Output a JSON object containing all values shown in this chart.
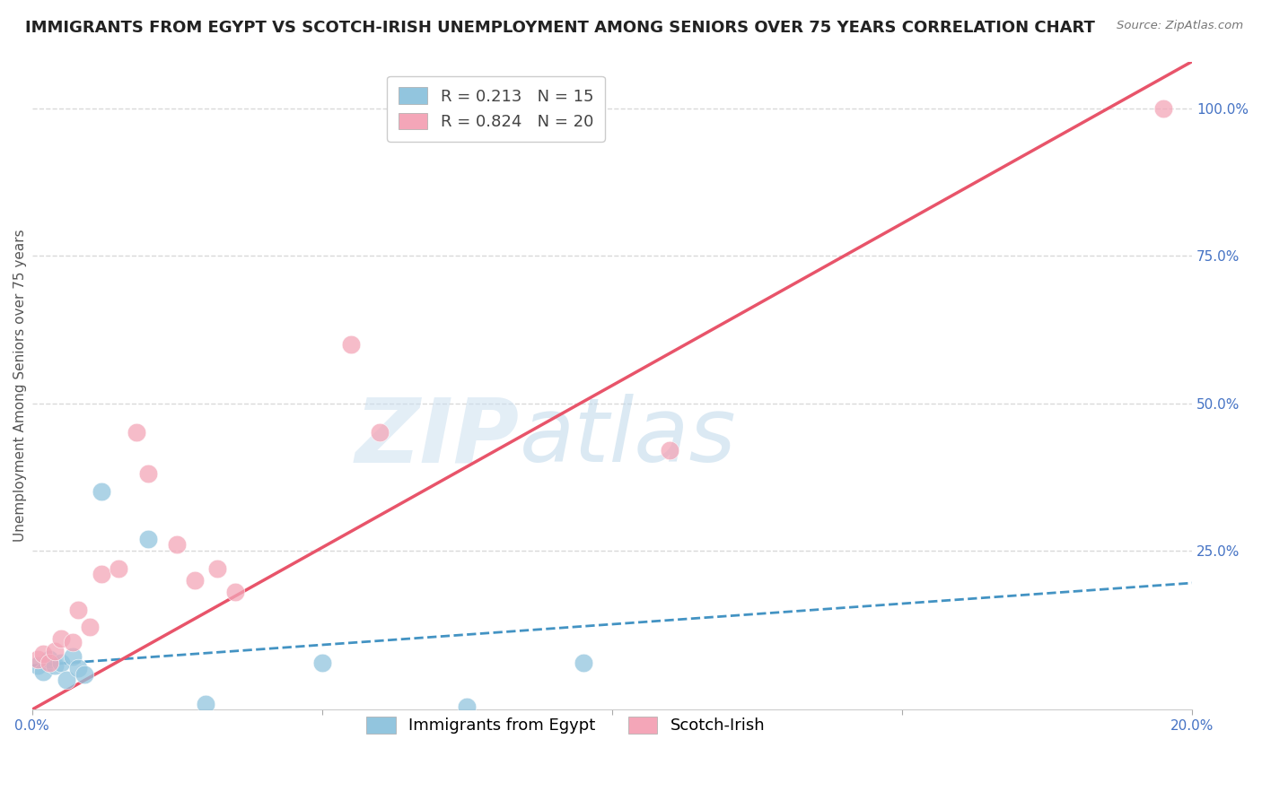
{
  "title": "IMMIGRANTS FROM EGYPT VS SCOTCH-IRISH UNEMPLOYMENT AMONG SENIORS OVER 75 YEARS CORRELATION CHART",
  "source": "Source: ZipAtlas.com",
  "ylabel": "Unemployment Among Seniors over 75 years",
  "watermark_zip": "ZIP",
  "watermark_atlas": "atlas",
  "xlim": [
    0.0,
    0.2
  ],
  "ylim": [
    -0.02,
    1.08
  ],
  "xticks": [
    0.0,
    0.05,
    0.1,
    0.15,
    0.2
  ],
  "xticklabels": [
    "0.0%",
    "",
    "",
    "",
    "20.0%"
  ],
  "yticks_right": [
    0.25,
    0.5,
    0.75,
    1.0
  ],
  "ytick_right_labels": [
    "25.0%",
    "50.0%",
    "75.0%",
    "100.0%"
  ],
  "blue_R": 0.213,
  "blue_N": 15,
  "pink_R": 0.824,
  "pink_N": 20,
  "blue_color": "#92c5de",
  "pink_color": "#f4a6b8",
  "blue_line_color": "#4393c3",
  "pink_line_color": "#e8546a",
  "blue_scatter_x": [
    0.001,
    0.002,
    0.003,
    0.004,
    0.005,
    0.006,
    0.007,
    0.008,
    0.009,
    0.012,
    0.02,
    0.03,
    0.05,
    0.075,
    0.095
  ],
  "blue_scatter_y": [
    0.055,
    0.045,
    0.065,
    0.055,
    0.06,
    0.03,
    0.07,
    0.05,
    0.04,
    0.35,
    0.27,
    -0.01,
    0.06,
    -0.015,
    0.06
  ],
  "pink_scatter_x": [
    0.001,
    0.002,
    0.003,
    0.004,
    0.005,
    0.007,
    0.008,
    0.01,
    0.012,
    0.015,
    0.018,
    0.02,
    0.025,
    0.028,
    0.032,
    0.035,
    0.055,
    0.06,
    0.11,
    0.195
  ],
  "pink_scatter_y": [
    0.065,
    0.075,
    0.06,
    0.08,
    0.1,
    0.095,
    0.15,
    0.12,
    0.21,
    0.22,
    0.45,
    0.38,
    0.26,
    0.2,
    0.22,
    0.18,
    0.6,
    0.45,
    0.42,
    1.0
  ],
  "blue_line_x0": 0.0,
  "blue_line_y0": 0.055,
  "blue_line_x1": 0.2,
  "blue_line_y1": 0.195,
  "pink_line_x0": 0.0,
  "pink_line_y0": -0.02,
  "pink_line_x1": 0.2,
  "pink_line_y1": 1.08,
  "grid_color": "#d9d9d9",
  "background_color": "#ffffff",
  "title_fontsize": 13,
  "axis_label_fontsize": 11,
  "tick_fontsize": 11,
  "legend_fontsize": 13,
  "right_tick_color": "#4472c4",
  "bottom_tick_color": "#4472c4"
}
